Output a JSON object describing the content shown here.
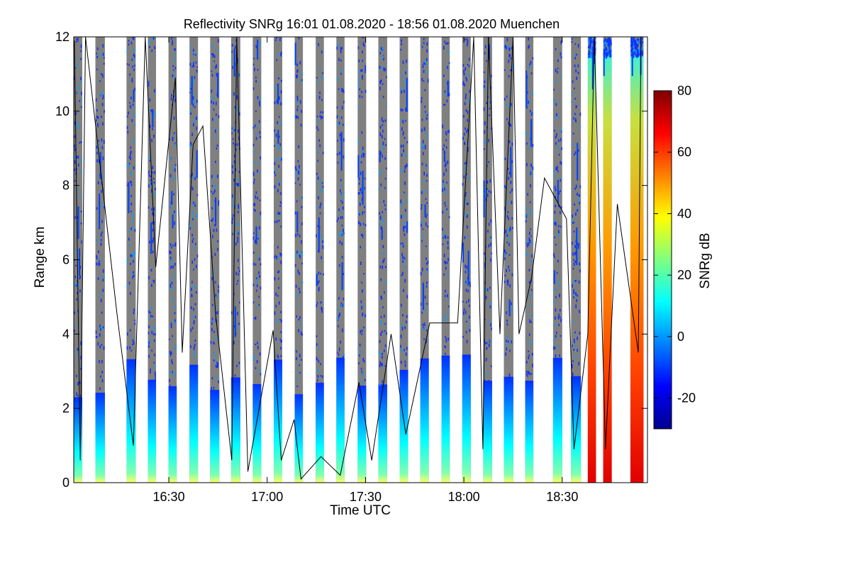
{
  "chart_data": {
    "type": "heatmap",
    "title": "Reflectivity SNRg   16:01 01.08.2020 - 18:56 01.08.2020 Muenchen",
    "xlabel": "Time UTC",
    "ylabel": "Range km",
    "x_range_minutes_utc": [
      961,
      1136
    ],
    "y_range_km": [
      0,
      12
    ],
    "x_ticks": [
      {
        "minutes": 990,
        "label": "16:30"
      },
      {
        "minutes": 1020,
        "label": "17:00"
      },
      {
        "minutes": 1050,
        "label": "17:30"
      },
      {
        "minutes": 1080,
        "label": "18:00"
      },
      {
        "minutes": 1110,
        "label": "18:30"
      }
    ],
    "y_ticks": [
      0,
      2,
      4,
      6,
      8,
      10,
      12
    ],
    "colorbar": {
      "label": "SNRg dB",
      "range": [
        -30,
        80
      ],
      "ticks": [
        -20,
        0,
        20,
        40,
        60,
        80
      ],
      "colors": [
        "#00008f",
        "#0000ff",
        "#0080ff",
        "#00ffff",
        "#80ff80",
        "#ffff00",
        "#ff8000",
        "#ff0000",
        "#800000"
      ]
    },
    "no_data_color": "#808080",
    "profile_blocks_minutes": [
      [
        961.0,
        963.6
      ],
      [
        967.6,
        970.5
      ],
      [
        977.1,
        979.9
      ],
      [
        983.6,
        986.1
      ],
      [
        989.9,
        992.4
      ],
      [
        996.3,
        998.9
      ],
      [
        1002.6,
        1005.4
      ],
      [
        1009.0,
        1011.8
      ],
      [
        1015.6,
        1018.2
      ],
      [
        1022.0,
        1024.6
      ],
      [
        1028.4,
        1030.9
      ],
      [
        1034.8,
        1037.3
      ],
      [
        1041.1,
        1043.6
      ],
      [
        1047.6,
        1050.2
      ],
      [
        1053.9,
        1056.6
      ],
      [
        1060.4,
        1063.0
      ],
      [
        1066.7,
        1069.3
      ],
      [
        1073.2,
        1075.7
      ],
      [
        1079.5,
        1082.1
      ],
      [
        1085.9,
        1088.6
      ],
      [
        1092.2,
        1095.1
      ],
      [
        1098.7,
        1101.2
      ],
      [
        1107.2,
        1110.0
      ],
      [
        1112.7,
        1115.7
      ],
      [
        1117.8,
        1120.3
      ],
      [
        1122.5,
        1125.1
      ],
      [
        1130.8,
        1134.8
      ]
    ],
    "cloud_base_line_km": [
      {
        "t": 961.2,
        "km": 11.9
      },
      {
        "t": 963.0,
        "km": 0.6
      },
      {
        "t": 964.6,
        "km": 12.0
      },
      {
        "t": 974.1,
        "km": 4.6
      },
      {
        "t": 979.2,
        "km": 1.0
      },
      {
        "t": 982.8,
        "km": 12.0
      },
      {
        "t": 986.0,
        "km": 5.8
      },
      {
        "t": 992.0,
        "km": 10.9
      },
      {
        "t": 994.1,
        "km": 3.5
      },
      {
        "t": 997.4,
        "km": 9.1
      },
      {
        "t": 1000.4,
        "km": 9.6
      },
      {
        "t": 1004.3,
        "km": 4.5
      },
      {
        "t": 1009.2,
        "km": 0.6
      },
      {
        "t": 1010.7,
        "km": 12.0
      },
      {
        "t": 1014.1,
        "km": 0.3
      },
      {
        "t": 1021.8,
        "km": 4.1
      },
      {
        "t": 1024.3,
        "km": 0.6
      },
      {
        "t": 1028.2,
        "km": 1.7
      },
      {
        "t": 1030.3,
        "km": 0.1
      },
      {
        "t": 1036.4,
        "km": 0.7
      },
      {
        "t": 1042.3,
        "km": 0.2
      },
      {
        "t": 1048.0,
        "km": 2.7
      },
      {
        "t": 1051.9,
        "km": 0.6
      },
      {
        "t": 1057.8,
        "km": 4.0
      },
      {
        "t": 1062.3,
        "km": 1.3
      },
      {
        "t": 1069.6,
        "km": 4.3
      },
      {
        "t": 1078.1,
        "km": 4.3
      },
      {
        "t": 1083.0,
        "km": 12.0
      },
      {
        "t": 1085.8,
        "km": 0.9
      },
      {
        "t": 1087.5,
        "km": 12.0
      },
      {
        "t": 1091.0,
        "km": 4.0
      },
      {
        "t": 1095.0,
        "km": 12.0
      },
      {
        "t": 1096.8,
        "km": 4.0
      },
      {
        "t": 1100.6,
        "km": 5.5
      },
      {
        "t": 1104.6,
        "km": 8.2
      },
      {
        "t": 1111.3,
        "km": 7.1
      },
      {
        "t": 1113.6,
        "km": 0.9
      },
      {
        "t": 1117.8,
        "km": 4.0
      },
      {
        "t": 1119.8,
        "km": 12.0
      },
      {
        "t": 1123.2,
        "km": 0.9
      },
      {
        "t": 1126.8,
        "km": 7.5
      },
      {
        "t": 1133.2,
        "km": 3.5
      },
      {
        "t": 1134.0,
        "km": 12.0
      }
    ]
  }
}
